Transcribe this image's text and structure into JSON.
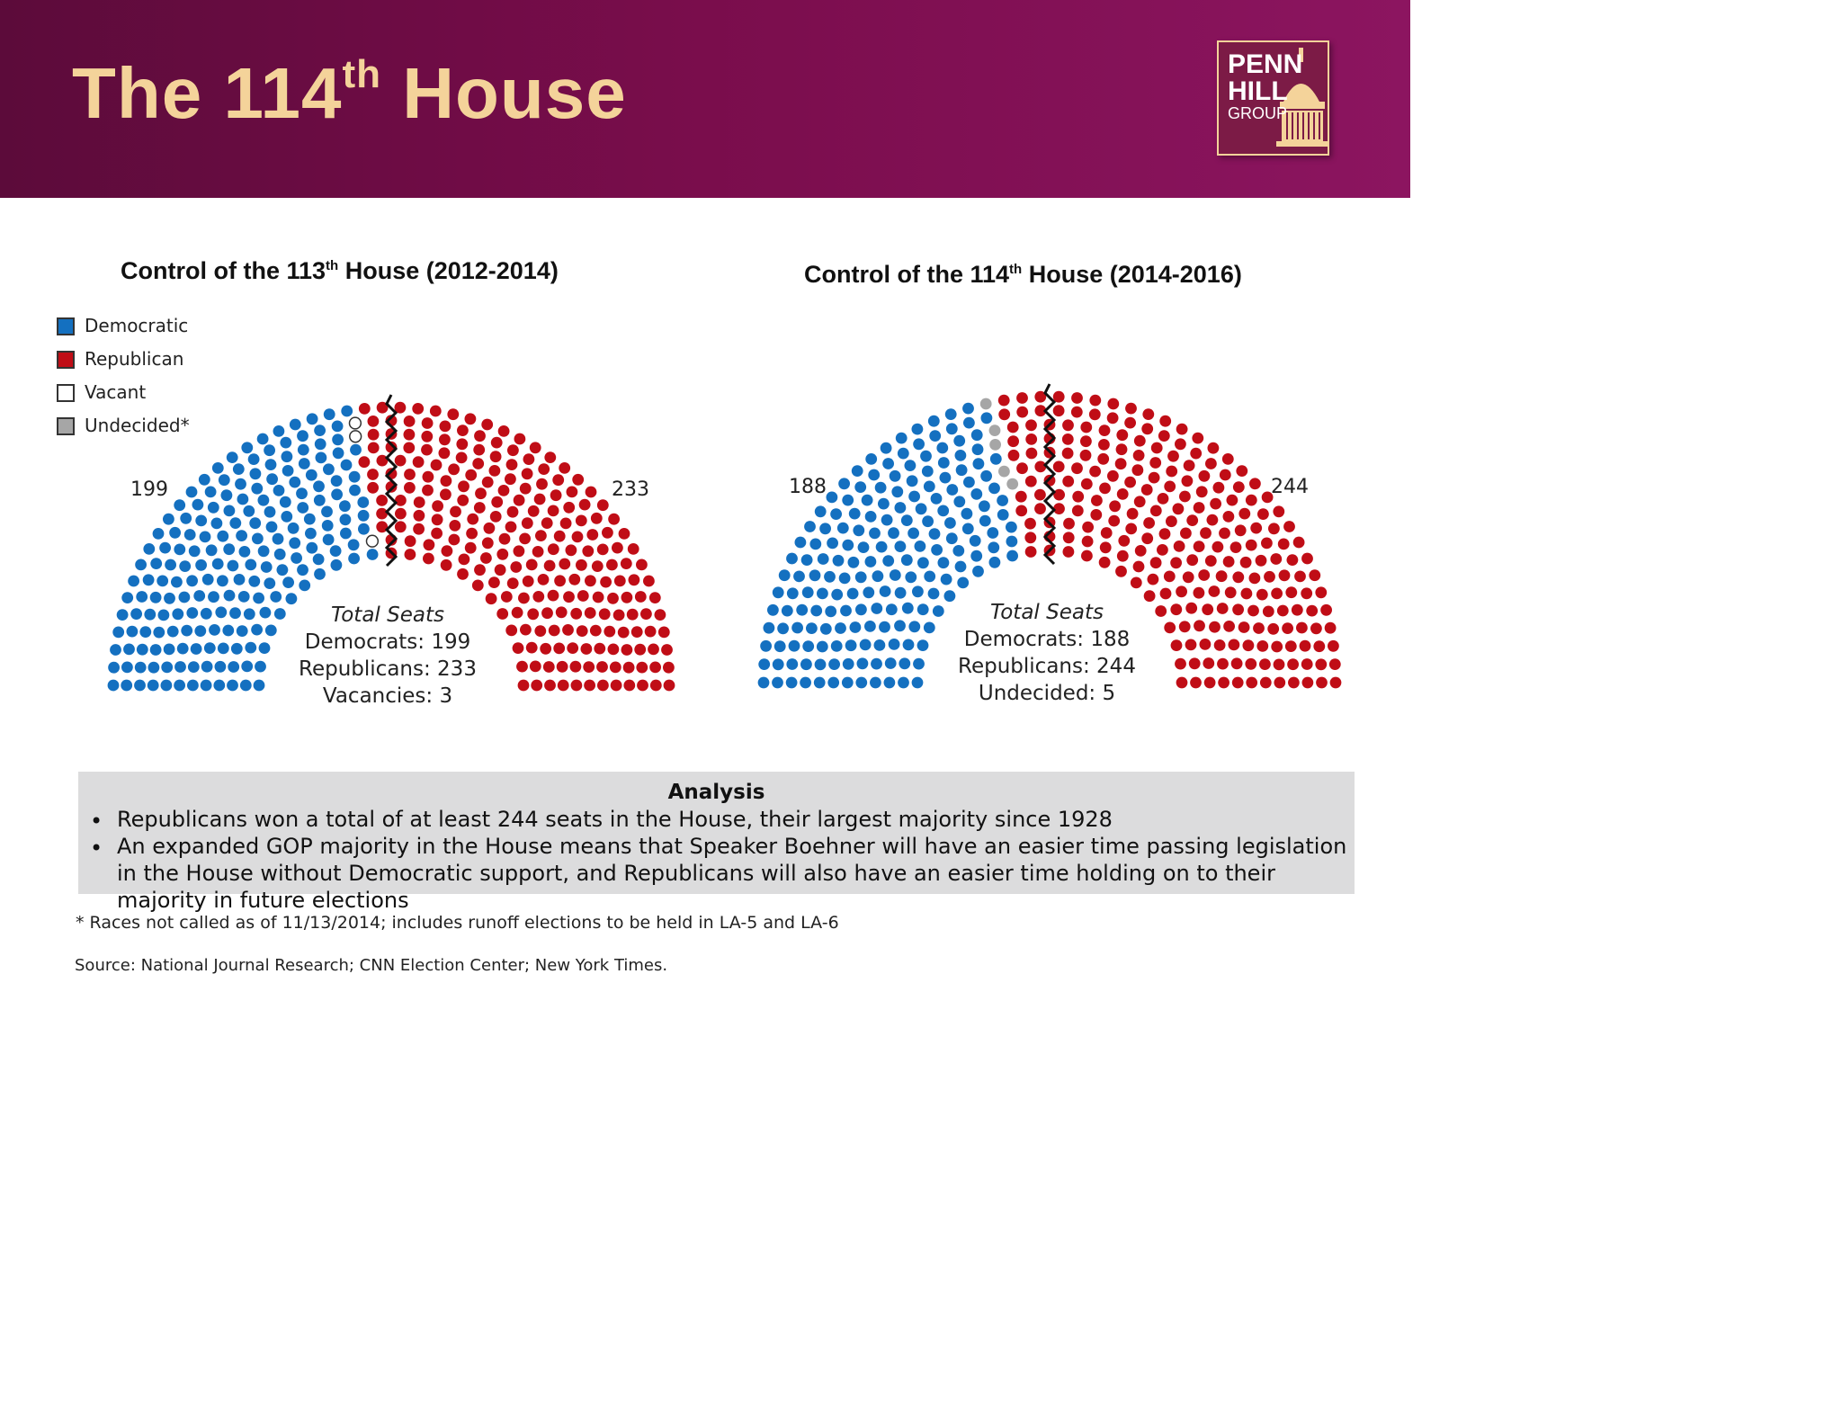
{
  "header": {
    "title_main": "The 114",
    "title_sup": "th",
    "title_end": " House",
    "logo": {
      "line1": "PENN",
      "line2": "HILL",
      "line3": "GROUP"
    }
  },
  "legend": {
    "items": [
      {
        "label": "Democratic",
        "color": "#1470c0"
      },
      {
        "label": "Republican",
        "color": "#c00d16"
      },
      {
        "label": "Vacant",
        "color": "#ffffff"
      },
      {
        "label": "Undecided*",
        "color": "#a6a6a6"
      }
    ]
  },
  "chart_data": [
    {
      "type": "parliament",
      "title_main": "Control of the 113",
      "title_sup": "th",
      "title_end": " House (2012-2014)",
      "categories": [
        "Democratic",
        "Vacant",
        "Republican"
      ],
      "values": [
        199,
        3,
        233
      ],
      "left_label": "199",
      "right_label": "233",
      "totals": {
        "heading": "Total Seats",
        "line1": "Democrats: 199",
        "line2": "Republicans: 233",
        "line3": "Vacancies: 3"
      }
    },
    {
      "type": "parliament",
      "title_main": "Control of the 114",
      "title_sup": "th",
      "title_end": " House (2014-2016)",
      "categories": [
        "Democratic",
        "Undecided*",
        "Republican"
      ],
      "values": [
        188,
        5,
        244
      ],
      "left_label": "188",
      "right_label": "244",
      "totals": {
        "heading": "Total Seats",
        "line1": "Democrats: 188",
        "line2": "Republicans: 244",
        "line3": "Undecided: 5"
      }
    }
  ],
  "analysis": {
    "heading": "Analysis",
    "bullet_symbol": "•",
    "bullets": [
      "Republicans won a total of at least 244 seats in the House, their largest majority since 1928",
      "An expanded GOP majority in the House means that Speaker Boehner will have an easier time passing legislation in the House without Democratic support, and Republicans will also have an easier time holding on to their majority in future elections"
    ]
  },
  "footnote": "* Races not called as of 11/13/2014; includes runoff elections to be held in LA-5 and LA-6",
  "source": "Source: National Journal Research; CNN Election Center; New York Times."
}
